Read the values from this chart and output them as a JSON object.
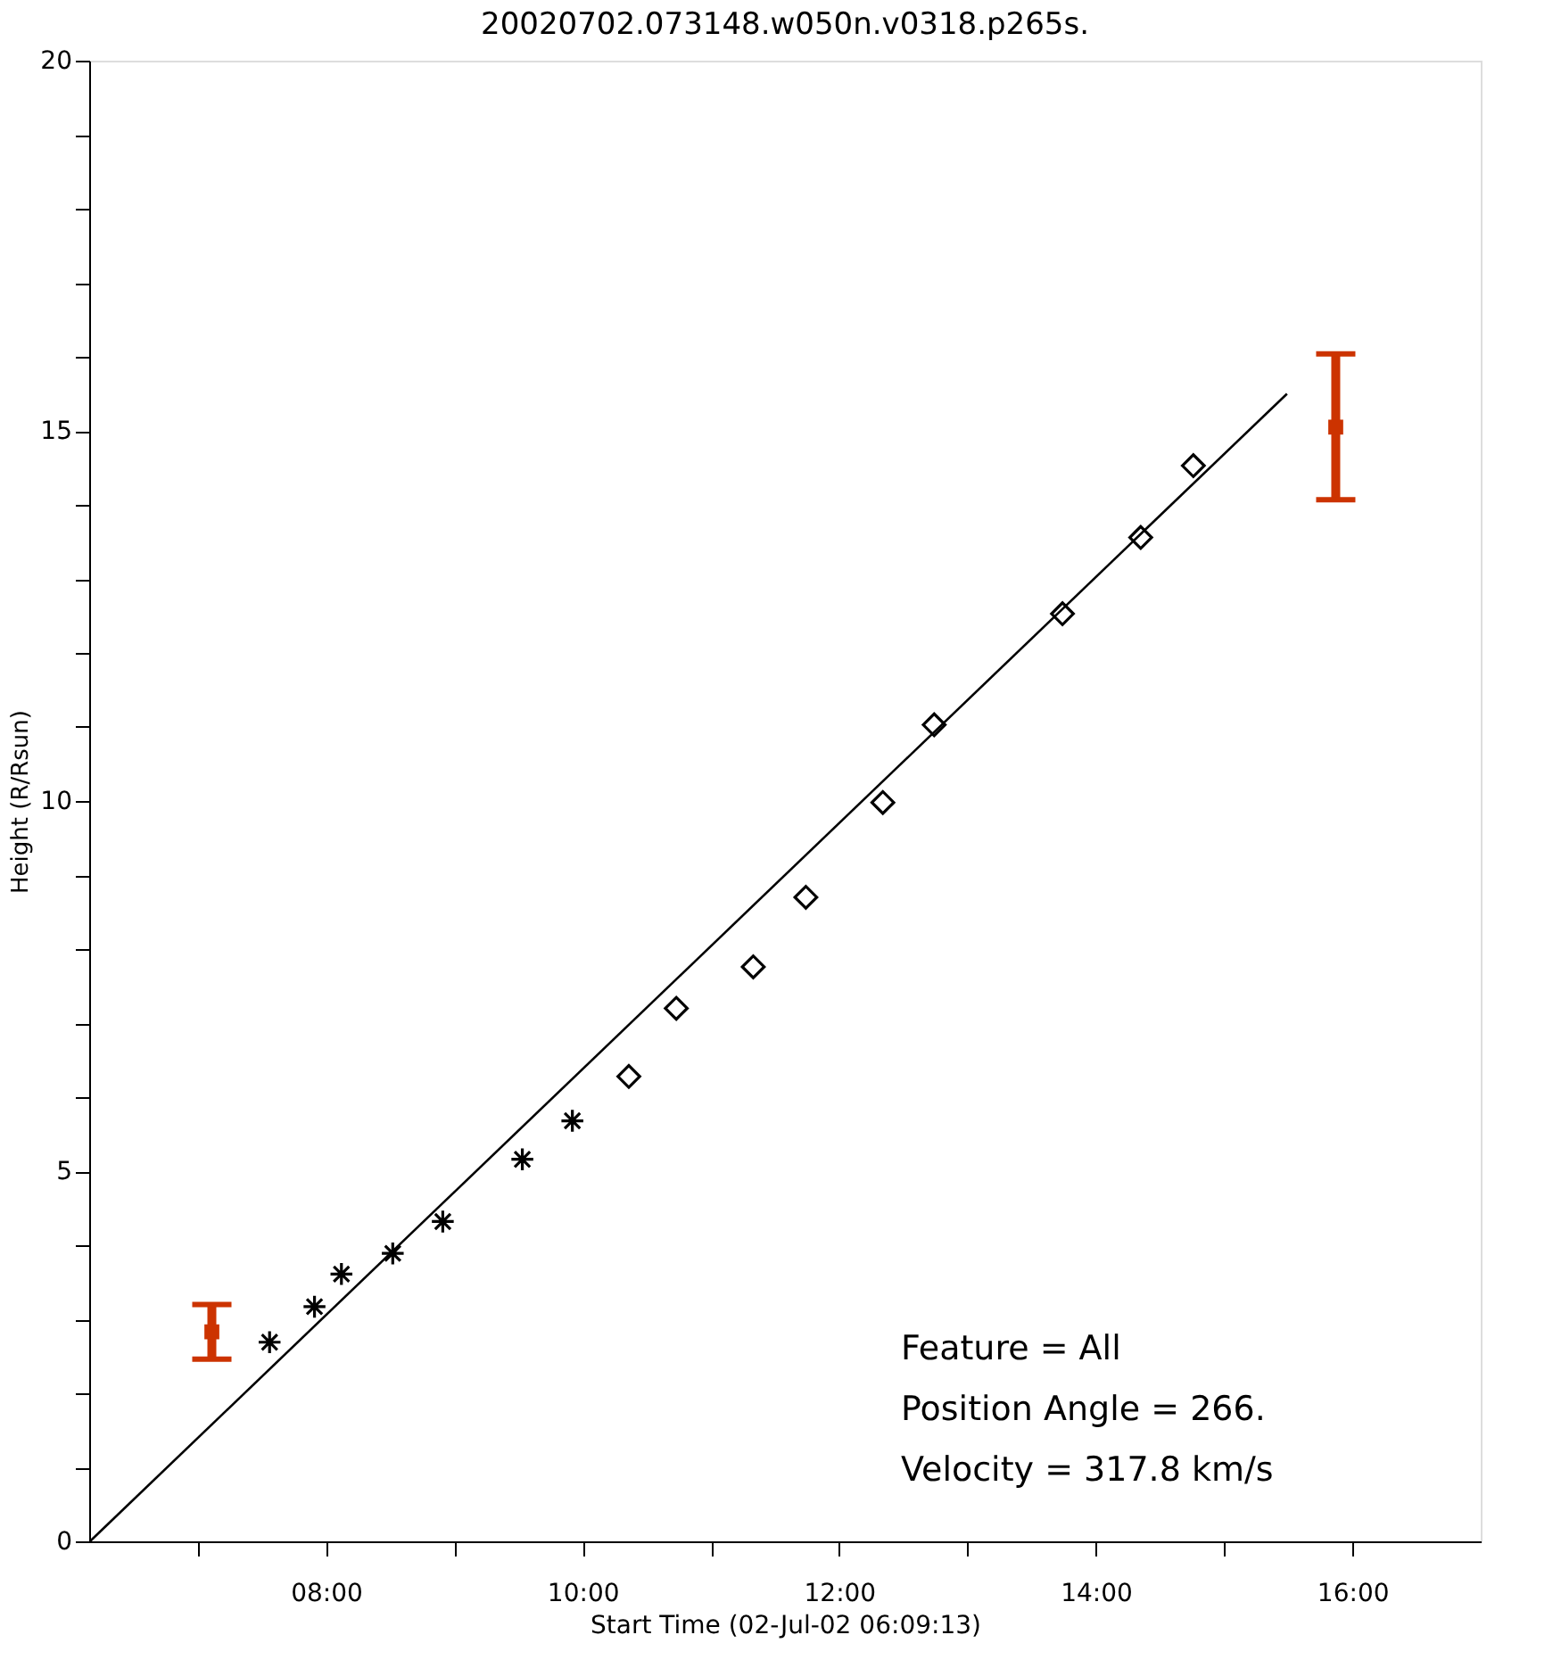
{
  "chart_data": {
    "type": "scatter",
    "title": "20020702.073148.w050n.v0318.p265s.",
    "xlabel": "Start Time (02-Jul-02 06:09:13)",
    "ylabel": "Height (R/Rsun)",
    "xlim": [
      6.154,
      17.0
    ],
    "ylim": [
      0,
      20
    ],
    "xticks": [
      {
        "value": 7,
        "label": null
      },
      {
        "value": 8,
        "label": "08:00"
      },
      {
        "value": 9,
        "label": null
      },
      {
        "value": 10,
        "label": "10:00"
      },
      {
        "value": 11,
        "label": null
      },
      {
        "value": 12,
        "label": "12:00"
      },
      {
        "value": 13,
        "label": null
      },
      {
        "value": 14,
        "label": "14:00"
      },
      {
        "value": 15,
        "label": null
      },
      {
        "value": 16,
        "label": "16:00"
      }
    ],
    "yticks": [
      0,
      {
        "value": 1,
        "label": null
      },
      {
        "value": 2,
        "label": null
      },
      {
        "value": 3,
        "label": null
      },
      {
        "value": 4,
        "label": null
      },
      5,
      {
        "value": 6,
        "label": null
      },
      {
        "value": 7,
        "label": null
      },
      {
        "value": 8,
        "label": null
      },
      {
        "value": 9,
        "label": null
      },
      10,
      {
        "value": 11,
        "label": null
      },
      {
        "value": 12,
        "label": null
      },
      {
        "value": 13,
        "label": null
      },
      {
        "value": 14,
        "label": null
      },
      15,
      {
        "value": 16,
        "label": null
      },
      {
        "value": 17,
        "label": null
      },
      {
        "value": 18,
        "label": null
      },
      {
        "value": 19,
        "label": null
      },
      20
    ],
    "grid": false,
    "series": [
      {
        "marker": "cross",
        "color": "#000000",
        "x": [
          7.56,
          7.91,
          8.12,
          8.52,
          8.91,
          9.53,
          9.92
        ],
        "values": [
          2.69,
          3.17,
          3.61,
          3.89,
          4.32,
          5.16,
          5.68
        ]
      },
      {
        "marker": "diamond",
        "color": "#000000",
        "x": [
          10.36,
          10.73,
          11.33,
          11.74,
          12.34,
          12.74,
          13.74,
          14.35,
          14.76
        ],
        "values": [
          6.28,
          7.2,
          7.76,
          8.7,
          9.98,
          11.03,
          12.53,
          13.56,
          14.53
        ]
      },
      {
        "type": "line",
        "marker": "none",
        "line_style": "solid",
        "color": "#000000",
        "x": [
          6.16,
          15.49
        ],
        "values": [
          0,
          15.5
        ]
      },
      {
        "marker": "square",
        "color": "#cc3300",
        "x": [
          7.11,
          15.87
        ],
        "values": [
          2.83,
          15.05
        ],
        "errors": [
          [
            2.46,
            3.2
          ],
          [
            14.07,
            16.04
          ]
        ]
      }
    ],
    "annotations": [
      "Feature = All",
      "Position Angle =   266.",
      "Velocity =   317.8 km/s"
    ]
  }
}
